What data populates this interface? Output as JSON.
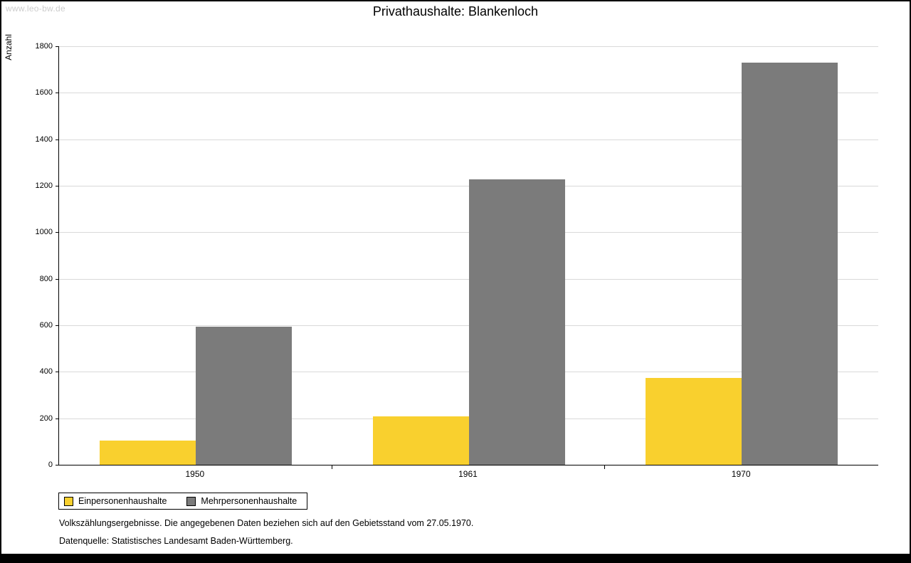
{
  "watermark": "www.leo-bw.de",
  "chart_data": {
    "type": "bar",
    "title": "Privathaushalte: Blankenloch",
    "xlabel": "",
    "ylabel": "Anzahl",
    "ylim": [
      0,
      1800
    ],
    "ytick_step": 200,
    "grid": true,
    "legend_position": "bottom-left",
    "categories": [
      "1950",
      "1961",
      "1970"
    ],
    "series": [
      {
        "name": "Einpersonenhaushalte",
        "color": "#f9d02e",
        "values": [
          105,
          207,
          375
        ]
      },
      {
        "name": "Mehrpersonenhaushalte",
        "color": "#7b7b7b",
        "values": [
          595,
          1228,
          1730
        ]
      }
    ]
  },
  "footer": {
    "line1": "Volkszählungsergebnisse. Die angegebenen Daten beziehen sich auf den Gebietsstand vom 27.05.1970.",
    "line2": "Datenquelle: Statistisches Landesamt Baden-Württemberg."
  }
}
